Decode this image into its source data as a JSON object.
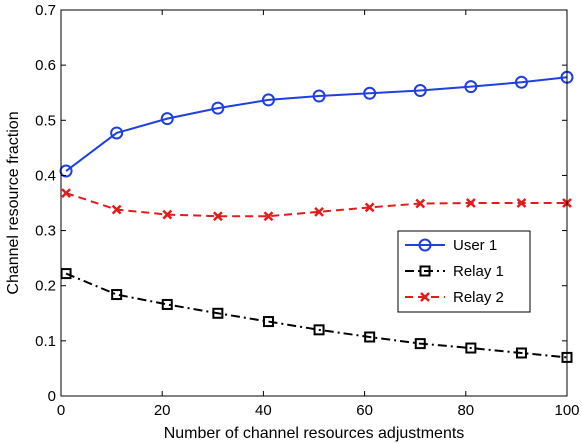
{
  "chart_data": {
    "type": "line",
    "xlabel": "Number of channel resources adjustments",
    "ylabel": "Channel resource fraction",
    "xlim": [
      0,
      100
    ],
    "ylim": [
      0,
      0.7
    ],
    "xticks": [
      "0",
      "20",
      "40",
      "60",
      "80",
      "100"
    ],
    "yticks": [
      "0",
      "0.1",
      "0.2",
      "0.3",
      "0.4",
      "0.5",
      "0.6",
      "0.7"
    ],
    "x": [
      1,
      11,
      21,
      31,
      41,
      51,
      61,
      71,
      81,
      91,
      100
    ],
    "legend_position": "center-right",
    "grid": false,
    "series": [
      {
        "name": "User 1",
        "color": "#1f3fe0",
        "marker": "circle",
        "line_style": "solid",
        "values": [
          0.408,
          0.477,
          0.503,
          0.522,
          0.537,
          0.544,
          0.549,
          0.554,
          0.561,
          0.569,
          0.578
        ]
      },
      {
        "name": "Relay 1",
        "color": "#000000",
        "marker": "square",
        "line_style": "dash-dot",
        "values": [
          0.222,
          0.184,
          0.166,
          0.15,
          0.135,
          0.12,
          0.107,
          0.095,
          0.087,
          0.078,
          0.07
        ]
      },
      {
        "name": "Relay 2",
        "color": "#e21b1b",
        "marker": "x",
        "line_style": "dashed",
        "values": [
          0.368,
          0.338,
          0.329,
          0.326,
          0.326,
          0.334,
          0.342,
          0.349,
          0.35,
          0.35,
          0.35
        ]
      }
    ]
  }
}
